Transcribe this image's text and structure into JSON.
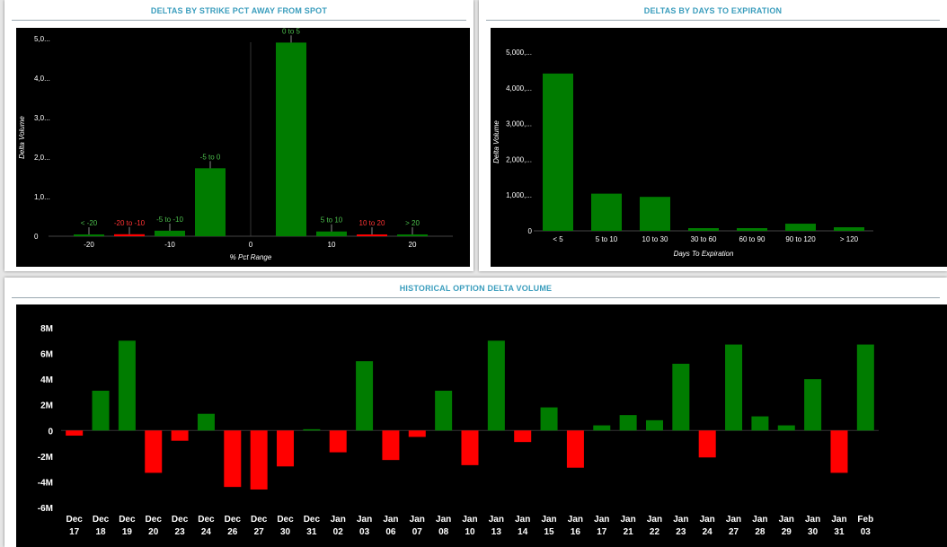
{
  "colors": {
    "positive": "#007c00",
    "negative": "#ff0000",
    "title": "#3a9dbd",
    "background": "#000000",
    "axis_text": "#ffffff"
  },
  "strike_panel": {
    "title": "DELTAS BY STRIKE PCT AWAY FROM SPOT"
  },
  "dte_panel": {
    "title": "DELTAS BY DAYS TO EXPIRATION"
  },
  "history_panel": {
    "title": "HISTORICAL OPTION DELTA VOLUME"
  },
  "chart_data": [
    {
      "type": "bar",
      "title": "DELTAS BY STRIKE PCT AWAY FROM SPOT",
      "xlabel": "% Pct Range",
      "ylabel": "Delta Volume",
      "x_ticks": [
        "-20",
        "-10",
        "0",
        "10",
        "20"
      ],
      "y_ticks": [
        "0",
        "1,0...",
        "2,0...",
        "3,0...",
        "4,0...",
        "5,0..."
      ],
      "ylim": [
        0,
        5000
      ],
      "xlim": [
        -25,
        25
      ],
      "grid": false,
      "bars": [
        {
          "label": "< -20",
          "x": -20,
          "value": 10,
          "sign": "positive"
        },
        {
          "label": "-20 to -10",
          "x": -15,
          "value": 50,
          "sign": "negative"
        },
        {
          "label": "-5 to -10",
          "x": -10,
          "value": 140,
          "sign": "positive"
        },
        {
          "label": "-5 to 0",
          "x": -5,
          "value": 1720,
          "sign": "positive"
        },
        {
          "label": "0 to 5",
          "x": 5,
          "value": 4900,
          "sign": "positive"
        },
        {
          "label": "5 to 10",
          "x": 10,
          "value": 120,
          "sign": "positive"
        },
        {
          "label": "10 to 20",
          "x": 15,
          "value": 30,
          "sign": "negative"
        },
        {
          "label": "> 20",
          "x": 20,
          "value": 30,
          "sign": "positive"
        }
      ]
    },
    {
      "type": "bar",
      "title": "DELTAS BY DAYS TO EXPIRATION",
      "xlabel": "Days To Expiration",
      "ylabel": "Delta Volume",
      "y_ticks": [
        "0",
        "1,000,...",
        "2,000,...",
        "3,000,...",
        "4,000,...",
        "5,000,..."
      ],
      "ylim": [
        0,
        5000
      ],
      "grid": false,
      "categories": [
        "< 5",
        "5 to 10",
        "10 to 30",
        "30 to 60",
        "60 to 90",
        "90 to 120",
        "> 120"
      ],
      "values": [
        4400,
        1040,
        950,
        50,
        50,
        200,
        100
      ]
    },
    {
      "type": "bar",
      "title": "HISTORICAL OPTION DELTA VOLUME",
      "xlabel": "",
      "ylabel": "",
      "y_ticks": [
        "8M",
        "6M",
        "4M",
        "2M",
        "0",
        "-2M",
        "-4M",
        "-6M"
      ],
      "ylim": [
        -6000000,
        8000000
      ],
      "grid": false,
      "categories": [
        [
          "Dec",
          "17"
        ],
        [
          "Dec",
          "18"
        ],
        [
          "Dec",
          "19"
        ],
        [
          "Dec",
          "20"
        ],
        [
          "Dec",
          "23"
        ],
        [
          "Dec",
          "24"
        ],
        [
          "Dec",
          "26"
        ],
        [
          "Dec",
          "27"
        ],
        [
          "Dec",
          "30"
        ],
        [
          "Dec",
          "31"
        ],
        [
          "Jan",
          "02"
        ],
        [
          "Jan",
          "03"
        ],
        [
          "Jan",
          "06"
        ],
        [
          "Jan",
          "07"
        ],
        [
          "Jan",
          "08"
        ],
        [
          "Jan",
          "10"
        ],
        [
          "Jan",
          "13"
        ],
        [
          "Jan",
          "14"
        ],
        [
          "Jan",
          "15"
        ],
        [
          "Jan",
          "16"
        ],
        [
          "Jan",
          "17"
        ],
        [
          "Jan",
          "21"
        ],
        [
          "Jan",
          "22"
        ],
        [
          "Jan",
          "23"
        ],
        [
          "Jan",
          "24"
        ],
        [
          "Jan",
          "27"
        ],
        [
          "Jan",
          "28"
        ],
        [
          "Jan",
          "29"
        ],
        [
          "Jan",
          "30"
        ],
        [
          "Jan",
          "31"
        ],
        [
          "Feb",
          "03"
        ]
      ],
      "values": [
        -400000,
        3100000,
        7000000,
        -3300000,
        -800000,
        1300000,
        -4400000,
        -4600000,
        -2800000,
        100000,
        -1700000,
        5400000,
        -2300000,
        -500000,
        3100000,
        -2700000,
        7000000,
        -900000,
        1800000,
        -2900000,
        400000,
        1200000,
        800000,
        5200000,
        -2100000,
        6700000,
        1100000,
        400000,
        4000000,
        -3300000,
        6700000
      ]
    }
  ]
}
